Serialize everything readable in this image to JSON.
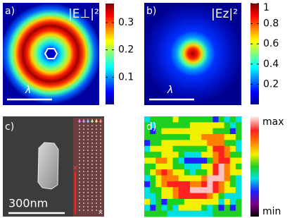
{
  "panels": {
    "a": {
      "label": "a)",
      "title": "|E⊥|²",
      "scale_label": "λ",
      "colorbar": {
        "range": [
          0,
          0.37
        ],
        "ticks": [
          0.1,
          0.2,
          0.3
        ]
      }
    },
    "b": {
      "label": "b)",
      "title": "|Ez|²",
      "scale_label": "λ",
      "colorbar": {
        "range": [
          0,
          1
        ],
        "ticks": [
          0.2,
          0.4,
          0.6,
          0.8,
          1
        ]
      }
    },
    "c": {
      "label": "c)",
      "scale_label": "300nm"
    },
    "d": {
      "label": "d)",
      "colorbar": {
        "max_label": "max",
        "min_label": "min"
      }
    }
  }
}
